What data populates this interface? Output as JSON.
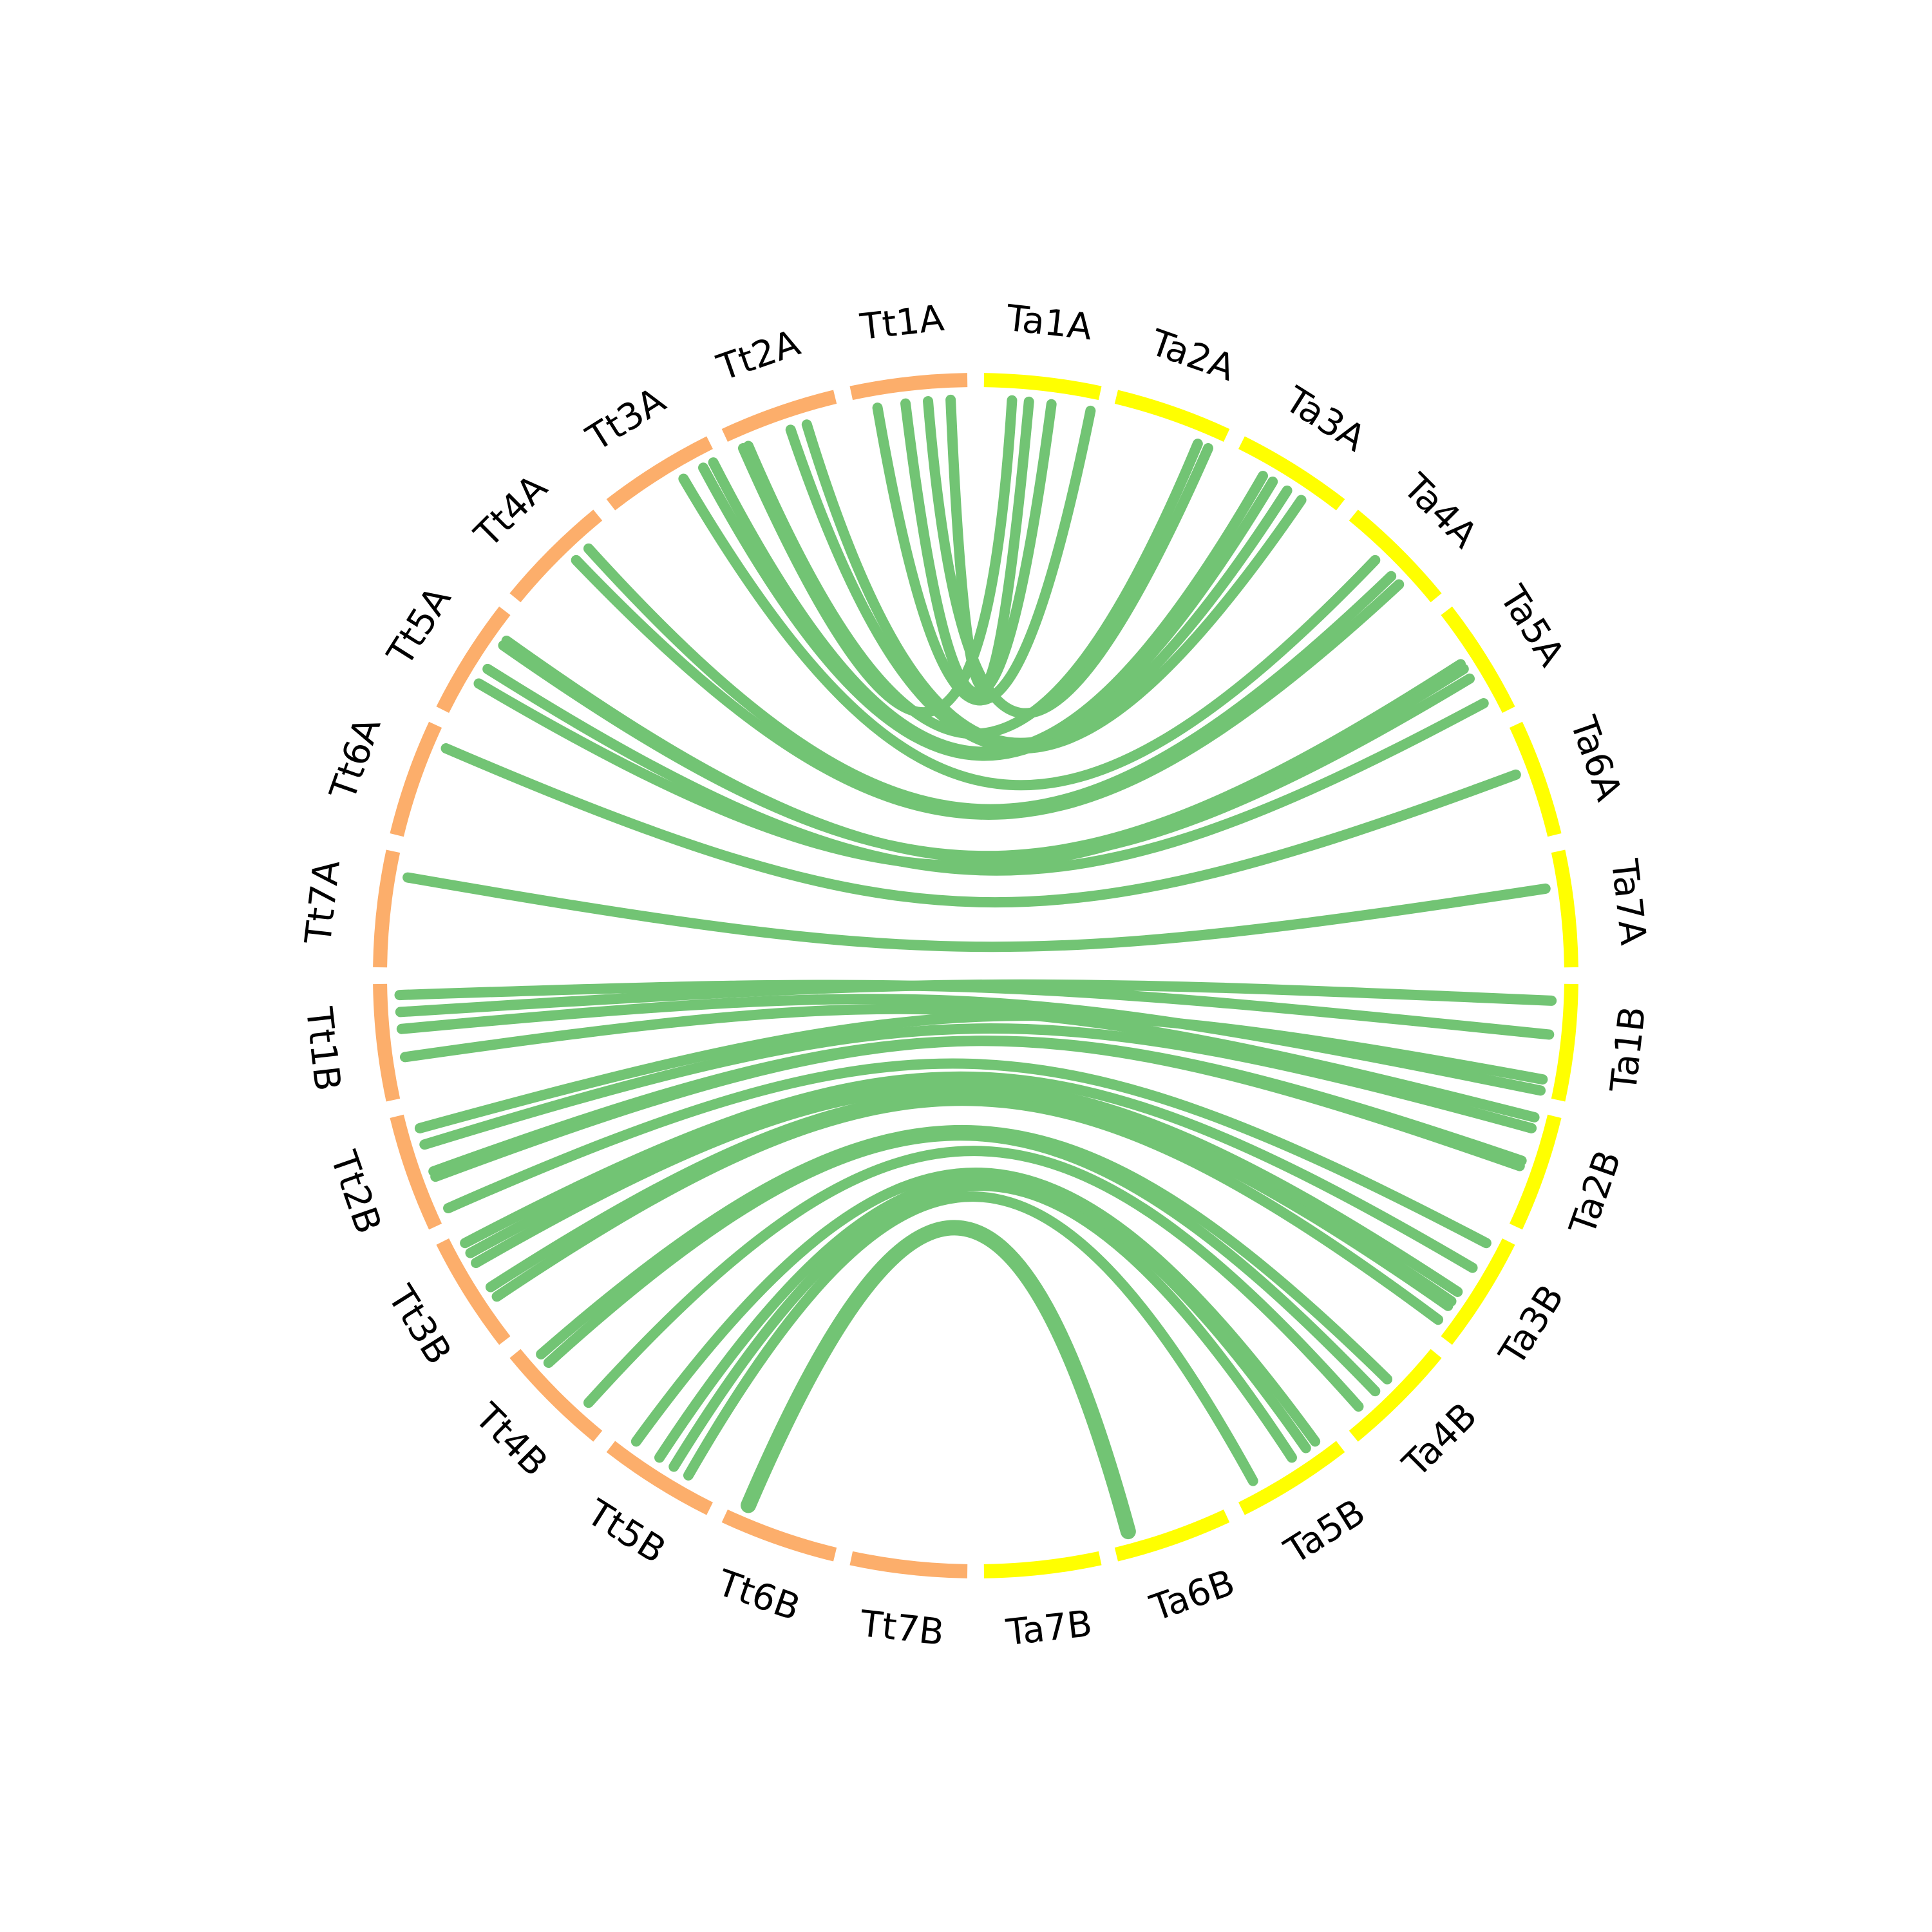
{
  "diagram": {
    "type": "circos",
    "colors": {
      "tt": "#fcae6b",
      "ta": "#ffff00",
      "link": "#72c474",
      "label": "#000000"
    },
    "chromosomes": [
      {
        "id": "Tt1A",
        "label": "Tt1A",
        "genome": "tt"
      },
      {
        "id": "Tt2A",
        "label": "Tt2A",
        "genome": "tt"
      },
      {
        "id": "Tt3A",
        "label": "Tt3A",
        "genome": "tt"
      },
      {
        "id": "Tt4A",
        "label": "Tt4A",
        "genome": "tt"
      },
      {
        "id": "Tt5A",
        "label": "Tt5A",
        "genome": "tt"
      },
      {
        "id": "Tt6A",
        "label": "Tt6A",
        "genome": "tt"
      },
      {
        "id": "Tt7A",
        "label": "Tt7A",
        "genome": "tt"
      },
      {
        "id": "Tt1B",
        "label": "Tt1B",
        "genome": "tt"
      },
      {
        "id": "Tt2B",
        "label": "Tt2B",
        "genome": "tt"
      },
      {
        "id": "Tt3B",
        "label": "Tt3B",
        "genome": "tt"
      },
      {
        "id": "Tt4B",
        "label": "Tt4B",
        "genome": "tt"
      },
      {
        "id": "Tt5B",
        "label": "Tt5B",
        "genome": "tt"
      },
      {
        "id": "Tt6B",
        "label": "Tt6B",
        "genome": "tt"
      },
      {
        "id": "Tt7B",
        "label": "Tt7B",
        "genome": "tt"
      },
      {
        "id": "Ta7B",
        "label": "Ta7B",
        "genome": "ta"
      },
      {
        "id": "Ta6B",
        "label": "Ta6B",
        "genome": "ta"
      },
      {
        "id": "Ta5B",
        "label": "Ta5B",
        "genome": "ta"
      },
      {
        "id": "Ta4B",
        "label": "Ta4B",
        "genome": "ta"
      },
      {
        "id": "Ta3B",
        "label": "Ta3B",
        "genome": "ta"
      },
      {
        "id": "Ta2B",
        "label": "Ta2B",
        "genome": "ta"
      },
      {
        "id": "Ta1B",
        "label": "Ta1B",
        "genome": "ta"
      },
      {
        "id": "Ta7A",
        "label": "Ta7A",
        "genome": "ta"
      },
      {
        "id": "Ta6A",
        "label": "Ta6A",
        "genome": "ta"
      },
      {
        "id": "Ta5A",
        "label": "Ta5A",
        "genome": "ta"
      },
      {
        "id": "Ta4A",
        "label": "Ta4A",
        "genome": "ta"
      },
      {
        "id": "Ta3A",
        "label": "Ta3A",
        "genome": "ta"
      },
      {
        "id": "Ta2A",
        "label": "Ta2A",
        "genome": "ta"
      },
      {
        "id": "Ta1A",
        "label": "Ta1A",
        "genome": "ta"
      }
    ],
    "links": [
      {
        "from": "Tt1A",
        "from_pos": 0.8,
        "to": "Ta1A",
        "to_pos": 0.05
      },
      {
        "from": "Tt1A",
        "from_pos": 0.55,
        "to": "Ta1A",
        "to_pos": 0.4
      },
      {
        "from": "Tt1A",
        "from_pos": 0.15,
        "to": "Ta1A",
        "to_pos": 0.6
      },
      {
        "from": "Tt1A",
        "from_pos": 0.35,
        "to": "Ta2A",
        "to_pos": 0.1
      },
      {
        "from": "Tt2A",
        "from_pos": 0.85,
        "to": "Ta2A",
        "to_pos": 0.2
      },
      {
        "from": "Tt2A",
        "from_pos": 0.9,
        "to": "Ta1A",
        "to_pos": 0.75
      },
      {
        "from": "Tt2A",
        "from_pos": 0.45,
        "to": "Ta3A",
        "to_pos": 0.3
      },
      {
        "from": "Tt2A",
        "from_pos": 0.3,
        "to": "Ta3A",
        "to_pos": 0.45
      },
      {
        "from": "Tt3A",
        "from_pos": 0.15,
        "to": "Ta3A",
        "to_pos": 0.6
      },
      {
        "from": "Tt3A",
        "from_pos": 0.05,
        "to": "Ta3A",
        "to_pos": 0.7
      },
      {
        "from": "Tt3A",
        "from_pos": 0.35,
        "to": "Ta4A",
        "to_pos": 0.6
      },
      {
        "from": "Tt4A",
        "from_pos": 0.25,
        "to": "Ta4A",
        "to_pos": 0.4
      },
      {
        "from": "Tt4A",
        "from_pos": 0.4,
        "to": "Ta4A",
        "to_pos": 0.3
      },
      {
        "from": "Tt5A",
        "from_pos": 0.25,
        "to": "Ta5A",
        "to_pos": 0.55
      },
      {
        "from": "Tt5A",
        "from_pos": 0.2,
        "to": "Ta5A",
        "to_pos": 0.4
      },
      {
        "from": "Tt5A",
        "from_pos": 0.5,
        "to": "Ta5A",
        "to_pos": 0.15
      },
      {
        "from": "Tt5A",
        "from_pos": 0.65,
        "to": "Ta5A",
        "to_pos": 0.5
      },
      {
        "from": "Tt6A",
        "from_pos": 0.15,
        "to": "Ta6A",
        "to_pos": 0.6
      },
      {
        "from": "Tt7A",
        "from_pos": 0.2,
        "to": "Ta7A",
        "to_pos": 0.7
      },
      {
        "from": "Tt1B",
        "from_pos": 0.1,
        "to": "Ta1B",
        "to_pos": 0.55
      },
      {
        "from": "Tt1B",
        "from_pos": 0.25,
        "to": "Ta1B",
        "to_pos": 0.85
      },
      {
        "from": "Tt1B",
        "from_pos": 0.4,
        "to": "Ta1B",
        "to_pos": 0.05
      },
      {
        "from": "Tt1B",
        "from_pos": 0.65,
        "to": "Ta2B",
        "to_pos": 0.95
      },
      {
        "from": "Tt2B",
        "from_pos": 0.15,
        "to": "Ta1B",
        "to_pos": 0.15
      },
      {
        "from": "Tt2B",
        "from_pos": 0.3,
        "to": "Ta2B",
        "to_pos": 0.85
      },
      {
        "from": "Tt2B",
        "from_pos": 0.55,
        "to": "Ta2B",
        "to_pos": 0.5
      },
      {
        "from": "Tt2B",
        "from_pos": 0.6,
        "to": "Ta2B",
        "to_pos": 0.55
      },
      {
        "from": "Tt2B",
        "from_pos": 0.9,
        "to": "Ta3B",
        "to_pos": 0.9
      },
      {
        "from": "Tt3B",
        "from_pos": 0.1,
        "to": "Ta3B",
        "to_pos": 0.65
      },
      {
        "from": "Tt3B",
        "from_pos": 0.2,
        "to": "Ta3B",
        "to_pos": 0.4
      },
      {
        "from": "Tt3B",
        "from_pos": 0.3,
        "to": "Ta3B",
        "to_pos": 0.3
      },
      {
        "from": "Tt3B",
        "from_pos": 0.55,
        "to": "Ta3B",
        "to_pos": 0.25
      },
      {
        "from": "Tt3B",
        "from_pos": 0.65,
        "to": "Ta3B",
        "to_pos": 0.1
      },
      {
        "from": "Tt4B",
        "from_pos": 0.15,
        "to": "Ta4B",
        "to_pos": 0.55
      },
      {
        "from": "Tt4B",
        "from_pos": 0.25,
        "to": "Ta4B",
        "to_pos": 0.4
      },
      {
        "from": "Tt4B",
        "from_pos": 0.75,
        "to": "Ta4B",
        "to_pos": 0.2
      },
      {
        "from": "Tt5B",
        "from_pos": 0.15,
        "to": "Ta5B",
        "to_pos": 0.85
      },
      {
        "from": "Tt5B",
        "from_pos": 0.4,
        "to": "Ta5B",
        "to_pos": 0.75
      },
      {
        "from": "Tt5B",
        "from_pos": 0.55,
        "to": "Ta5B",
        "to_pos": 0.6
      },
      {
        "from": "Tt5B",
        "from_pos": 0.7,
        "to": "Ta5B",
        "to_pos": 0.2
      },
      {
        "from": "Tt6B",
        "from_pos": 0.15,
        "to": "Ta6B",
        "to_pos": 0.15,
        "width": 24
      }
    ]
  }
}
